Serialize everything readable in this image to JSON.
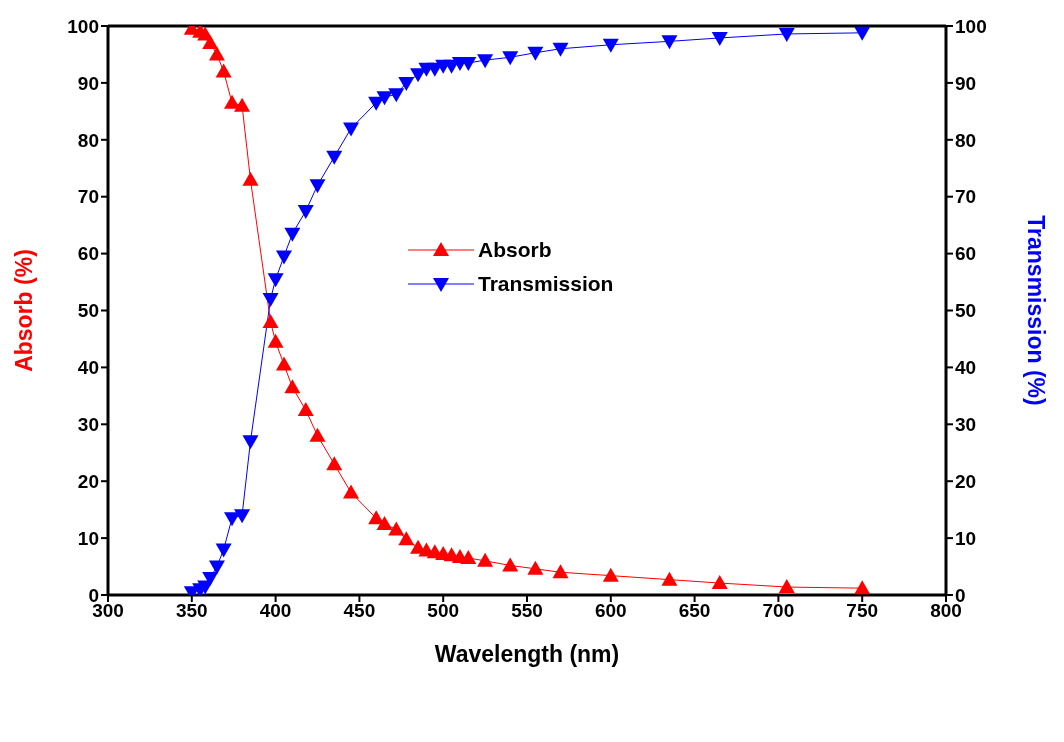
{
  "chart_data": {
    "type": "line",
    "xlabel": "Wavelength (nm)",
    "ylabel": "Absorb (%)",
    "y2label": "Transmission (%)",
    "x": [
      350,
      355,
      358,
      361,
      365,
      369,
      374,
      380,
      385,
      397,
      400,
      405,
      410,
      418,
      425,
      435,
      445,
      460,
      465,
      472,
      478,
      485,
      490,
      495,
      500,
      505,
      510,
      515,
      525,
      540,
      555,
      570,
      600,
      635,
      665,
      705,
      750
    ],
    "series": [
      {
        "name": "Absorb",
        "color": "#ff0000",
        "marker": "triangle",
        "values": [
          99.5,
          99,
          98.5,
          97,
          95,
          92,
          86.5,
          86,
          73,
          48,
          44.5,
          40.5,
          36.5,
          32.5,
          28,
          23,
          18,
          13.5,
          12.5,
          11.5,
          9.8,
          8.3,
          7.8,
          7.5,
          7.2,
          7,
          6.7,
          6.5,
          6,
          5.2,
          4.6,
          4,
          3.4,
          2.7,
          2.1,
          1.4,
          1.2
        ]
      },
      {
        "name": "Transmission",
        "color": "#0000ff",
        "marker": "triangle-down",
        "axis": "y2",
        "values": [
          0.5,
          1,
          1.5,
          3,
          5,
          8,
          13.5,
          14,
          27,
          52,
          55.5,
          59.5,
          63.5,
          67.5,
          72,
          77,
          82,
          86.5,
          87.5,
          88,
          90,
          91.5,
          92.5,
          92.5,
          93,
          93,
          93.5,
          93.5,
          94,
          94.5,
          95.3,
          96,
          96.7,
          97.3,
          97.9,
          98.6,
          98.8
        ]
      }
    ],
    "xlim": [
      300,
      800
    ],
    "xticks": [
      300,
      350,
      400,
      450,
      500,
      550,
      600,
      650,
      700,
      750,
      800
    ],
    "ylim": [
      0,
      100
    ],
    "yticks": [
      0,
      10,
      20,
      30,
      40,
      50,
      60,
      70,
      80,
      90,
      100
    ],
    "y2lim": [
      0,
      100
    ],
    "y2ticks": [
      0,
      10,
      20,
      30,
      40,
      50,
      60,
      70,
      80,
      90,
      100
    ],
    "grid": false,
    "legend": "center",
    "line_style": "solid"
  }
}
